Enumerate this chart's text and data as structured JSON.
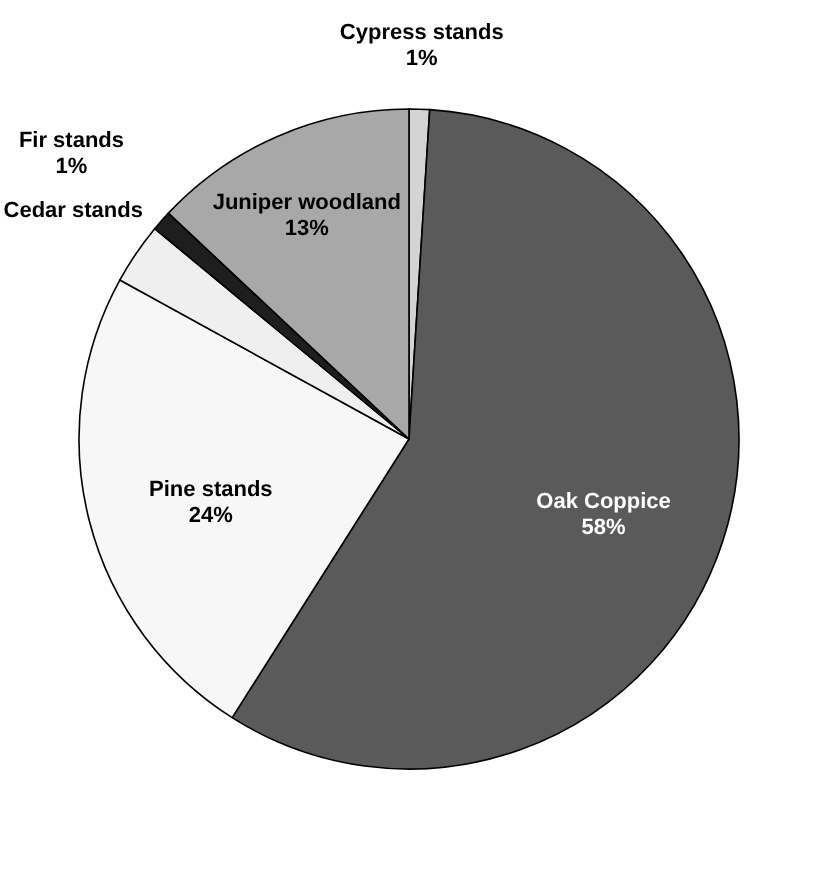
{
  "chart_data": {
    "type": "pie",
    "categories": [
      "Cypress stands",
      "Oak Coppice",
      "Pine stands",
      "Cedar stands",
      "Fir stands",
      "Juniper woodland"
    ],
    "values": [
      1,
      58,
      24,
      3,
      1,
      13
    ],
    "value_labels": [
      "1%",
      "58%",
      "24%",
      null,
      "1%",
      "13%"
    ],
    "colors": [
      "#d4d4d4",
      "#5a5a5a",
      "#f7f7f7",
      "#efefef",
      "#1e1e1e",
      "#a8a8a8"
    ],
    "legend": false
  }
}
